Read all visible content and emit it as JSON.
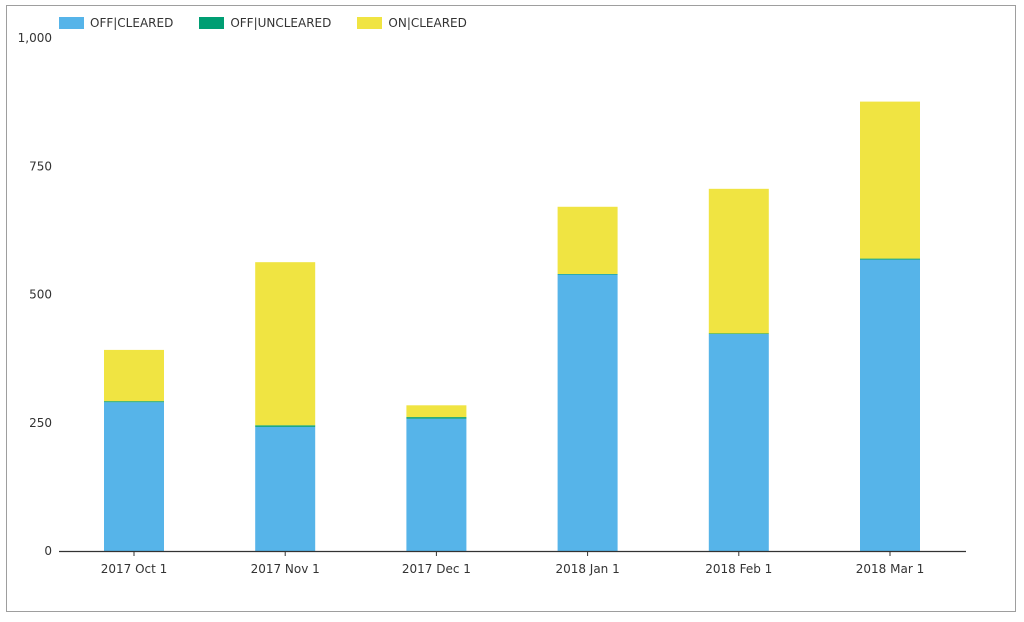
{
  "chart_data": {
    "type": "bar",
    "stacked": true,
    "categories": [
      "2017 Oct 1",
      "2017 Nov 1",
      "2017 Dec 1",
      "2018 Jan 1",
      "2018 Feb 1",
      "2018 Mar 1"
    ],
    "series": [
      {
        "name": "OFF|CLEARED",
        "color": "#56b4e9",
        "values": [
          290,
          242,
          258,
          539,
          423,
          568
        ]
      },
      {
        "name": "OFF|UNCLEARED",
        "color": "#009e73",
        "values": [
          2,
          3,
          3,
          1,
          1,
          2
        ]
      },
      {
        "name": "ON|CLEARED",
        "color": "#f0e442",
        "values": [
          100,
          318,
          23,
          131,
          282,
          306
        ]
      }
    ],
    "y_ticks": [
      "0",
      "250",
      "500",
      "750",
      "1,000"
    ],
    "y_tick_values": [
      0,
      250,
      500,
      750,
      1000
    ],
    "ylim": [
      0,
      1000
    ],
    "legend_position": "top-left",
    "grid": false
  }
}
